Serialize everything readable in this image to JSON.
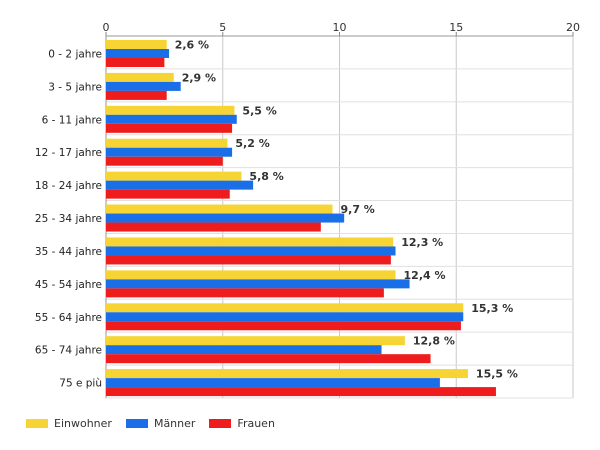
{
  "chart_data": {
    "type": "bar",
    "orientation": "horizontal",
    "categories": [
      "0 - 2 jahre",
      "3 - 5 jahre",
      "6 - 11 jahre",
      "12 - 17 jahre",
      "18 - 24 jahre",
      "25 - 34 jahre",
      "35 - 44 jahre",
      "45 - 54 jahre",
      "55 - 64 jahre",
      "65 - 74 jahre",
      "75 e più"
    ],
    "series": [
      {
        "name": "Einwohner",
        "color": "#f5d434",
        "values": [
          2.6,
          2.9,
          5.5,
          5.2,
          5.8,
          9.7,
          12.3,
          12.4,
          15.3,
          12.8,
          15.5
        ]
      },
      {
        "name": "Männer",
        "color": "#1a6fe8",
        "values": [
          2.7,
          3.2,
          5.6,
          5.4,
          6.3,
          10.2,
          12.4,
          13.0,
          15.3,
          11.8,
          14.3
        ]
      },
      {
        "name": "Frauen",
        "color": "#ee1c1c",
        "values": [
          2.5,
          2.6,
          5.4,
          5.0,
          5.3,
          9.2,
          12.2,
          11.9,
          15.2,
          13.9,
          16.7
        ]
      }
    ],
    "data_labels": [
      "2,6 %",
      "2,9 %",
      "5,5 %",
      "5,2 %",
      "5,8 %",
      "9,7 %",
      "12,3 %",
      "12,4 %",
      "15,3 %",
      "12,8 %",
      "15,5 %"
    ],
    "x_ticks": [
      "0",
      "5",
      "10",
      "15",
      "20"
    ],
    "xlim": [
      0,
      20
    ],
    "grid": true,
    "legend_position": "bottom-left"
  }
}
